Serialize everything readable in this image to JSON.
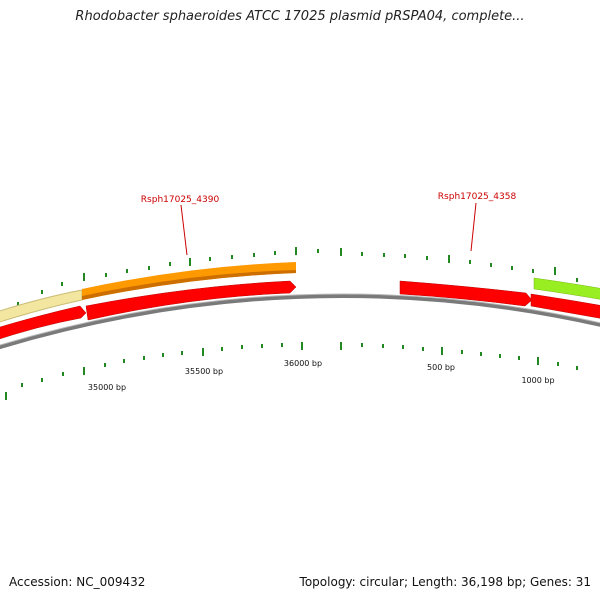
{
  "title": "Rhodobacter sphaeroides ATCC 17025 plasmid pRSPA04, complete...",
  "footer": {
    "accession": "Accession: NC_009432",
    "summary": "Topology: circular; Length: 36,198 bp; Genes: 31"
  },
  "colors": {
    "backbone": "#7a7a7a",
    "forward_cds": "#ff0000",
    "pale_feature": "#f2e6a0",
    "orange_feature": "#ff9900",
    "green_feature": "#99ee22",
    "ticks": "#228822",
    "gene_label": "#cc0000"
  },
  "ticks": {
    "labels": [
      "35000 bp",
      "35500 bp",
      "36000 bp",
      "500 bp",
      "1000 bp"
    ]
  },
  "gene_labels": [
    "Rsph17025_4390",
    "Rsph17025_4358"
  ]
}
